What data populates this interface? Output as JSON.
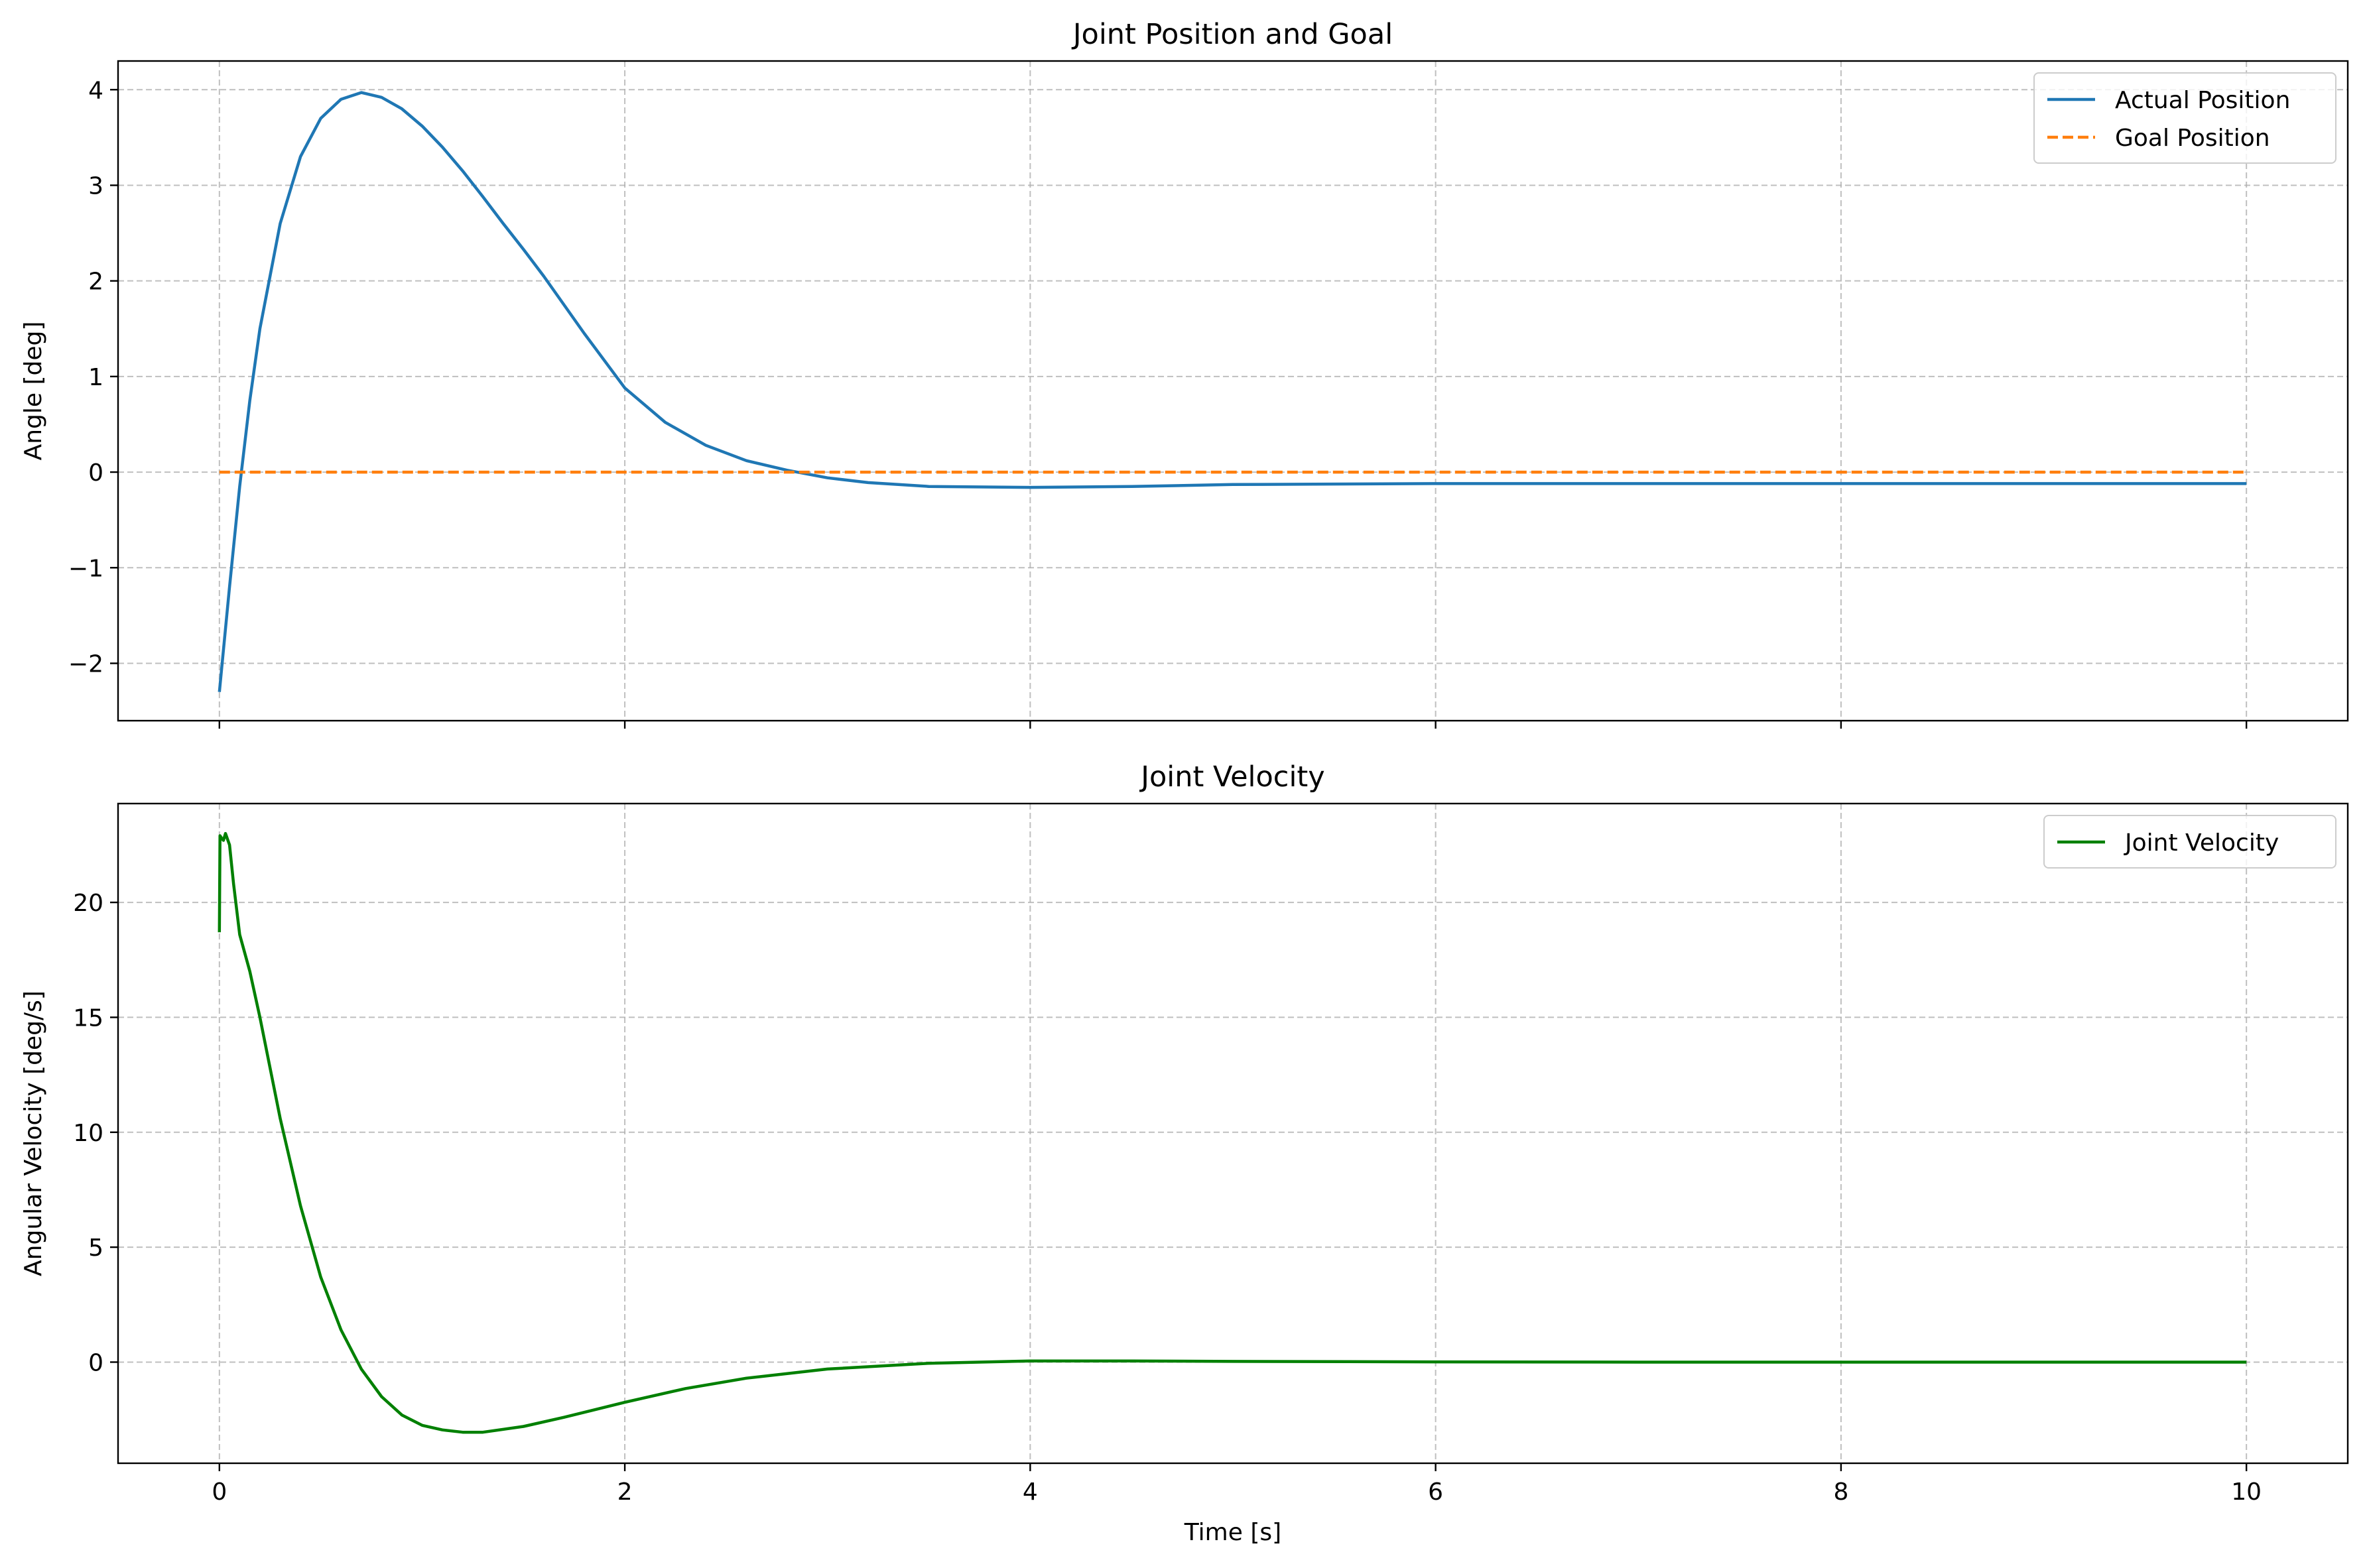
{
  "chart_data": [
    {
      "type": "line",
      "title": "Joint Position and Goal",
      "xlabel": "",
      "ylabel": "Angle [deg]",
      "xlim": [
        -0.5,
        10.5
      ],
      "ylim": [
        -2.6,
        4.3
      ],
      "xticks": [
        0,
        2,
        4,
        6,
        8,
        10
      ],
      "xticklabels_visible": false,
      "yticks": [
        -2,
        -1,
        0,
        1,
        2,
        3,
        4
      ],
      "yticklabels": [
        "−2",
        "−1",
        "0",
        "1",
        "2",
        "3",
        "4"
      ],
      "grid": true,
      "legend_position": "top-right",
      "series": [
        {
          "name": "Actual Position",
          "color": "#1f77b4",
          "style": "solid",
          "x": [
            0,
            0.05,
            0.1,
            0.15,
            0.2,
            0.3,
            0.4,
            0.5,
            0.6,
            0.7,
            0.8,
            0.9,
            1.0,
            1.1,
            1.2,
            1.3,
            1.4,
            1.5,
            1.6,
            1.8,
            2.0,
            2.2,
            2.4,
            2.6,
            2.8,
            3.0,
            3.2,
            3.5,
            4.0,
            4.5,
            5.0,
            6.0,
            7.0,
            8.0,
            9.0,
            10.0
          ],
          "y": [
            -2.3,
            -1.2,
            -0.15,
            0.75,
            1.5,
            2.6,
            3.3,
            3.7,
            3.9,
            3.97,
            3.92,
            3.8,
            3.62,
            3.4,
            3.15,
            2.88,
            2.6,
            2.33,
            2.05,
            1.45,
            0.88,
            0.52,
            0.28,
            0.12,
            0.02,
            -0.06,
            -0.11,
            -0.15,
            -0.16,
            -0.15,
            -0.13,
            -0.12,
            -0.12,
            -0.12,
            -0.12,
            -0.12
          ]
        },
        {
          "name": "Goal Position",
          "color": "#ff7f0e",
          "style": "dashed",
          "x": [
            0,
            10
          ],
          "y": [
            0,
            0
          ]
        }
      ]
    },
    {
      "type": "line",
      "title": "Joint Velocity",
      "xlabel": "Time [s]",
      "ylabel": "Angular Velocity [deg/s]",
      "xlim": [
        -0.5,
        10.5
      ],
      "ylim": [
        -4.4,
        24.3
      ],
      "xticks": [
        0,
        2,
        4,
        6,
        8,
        10
      ],
      "xticklabels": [
        "0",
        "2",
        "4",
        "6",
        "8",
        "10"
      ],
      "yticks": [
        0,
        5,
        10,
        15,
        20
      ],
      "yticklabels": [
        "0",
        "5",
        "10",
        "15",
        "20"
      ],
      "grid": true,
      "legend_position": "top-right",
      "series": [
        {
          "name": "Joint Velocity",
          "color": "#008000",
          "style": "solid",
          "x": [
            0,
            0.003,
            0.01,
            0.02,
            0.03,
            0.05,
            0.07,
            0.1,
            0.15,
            0.2,
            0.3,
            0.4,
            0.5,
            0.6,
            0.7,
            0.8,
            0.9,
            1.0,
            1.1,
            1.2,
            1.3,
            1.5,
            1.7,
            2.0,
            2.3,
            2.6,
            3.0,
            3.5,
            4.0,
            4.5,
            5.0,
            6.0,
            7.0,
            8.0,
            9.0,
            10.0
          ],
          "y": [
            18.7,
            22.9,
            22.8,
            22.7,
            23.0,
            22.5,
            20.8,
            18.6,
            17.0,
            15.0,
            10.6,
            6.8,
            3.7,
            1.4,
            -0.3,
            -1.5,
            -2.3,
            -2.75,
            -2.95,
            -3.05,
            -3.05,
            -2.8,
            -2.4,
            -1.75,
            -1.15,
            -0.7,
            -0.3,
            -0.05,
            0.05,
            0.05,
            0.03,
            0.01,
            0.0,
            0.0,
            0.0,
            0.0
          ]
        }
      ]
    }
  ]
}
